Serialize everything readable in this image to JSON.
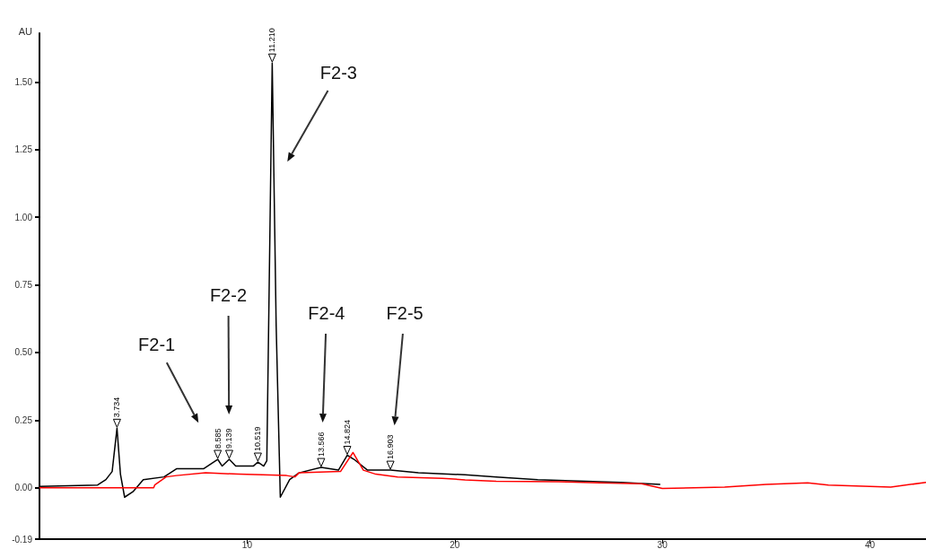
{
  "chart_data": {
    "type": "line",
    "ylabel": "AU",
    "xlim": [
      0,
      42.7
    ],
    "xticks": [
      10,
      20,
      30,
      40
    ],
    "ylim": [
      -0.19,
      1.68
    ],
    "yticks": [
      -0.19,
      {
        "value": 0,
        "label": "0.00"
      },
      {
        "value": 0.25,
        "label": "0.25"
      },
      {
        "value": 0.5,
        "label": "0.50"
      },
      {
        "value": 0.75,
        "label": "0.75"
      },
      {
        "value": 1,
        "label": "1.00"
      },
      {
        "value": 1.25,
        "label": "1.25"
      },
      {
        "value": 1.5,
        "label": "1.50"
      }
    ],
    "grid": false,
    "line_style": "solid",
    "marker": "none",
    "series": [
      {
        "color": "#000000",
        "x": [
          0,
          2.8,
          3.2,
          3.5,
          3.734,
          3.9,
          4.1,
          4.5,
          5.0,
          6.0,
          6.6,
          7.9,
          8.585,
          8.8,
          9.139,
          9.45,
          10.3,
          10.519,
          10.8,
          10.95,
          11.21,
          11.4,
          11.6,
          12.05,
          12.5,
          13.566,
          14.4,
          14.824,
          15.15,
          15.8,
          16.903,
          18.25,
          20.5,
          22,
          24,
          26,
          28,
          29.9
        ],
        "values": [
          0.005,
          0.01,
          0.03,
          0.06,
          0.22,
          0.05,
          -0.035,
          -0.015,
          0.03,
          0.04,
          0.07,
          0.07,
          0.105,
          0.08,
          0.105,
          0.08,
          0.08,
          0.095,
          0.08,
          0.1,
          1.57,
          0.6,
          -0.035,
          0.03,
          0.055,
          0.075,
          0.065,
          0.12,
          0.105,
          0.065,
          0.065,
          0.055,
          0.048,
          0.04,
          0.03,
          0.025,
          0.02,
          0.012
        ]
      },
      {
        "color": "#ff0000",
        "x": [
          0,
          5.5,
          5.55,
          6.1,
          6.6,
          8.0,
          9.6,
          11.9,
          12.3,
          12.5,
          14.5,
          15.1,
          15.6,
          16.2,
          17.25,
          19.4,
          20.5,
          22,
          25,
          27,
          29,
          30,
          33,
          35,
          37,
          38,
          41,
          42.7
        ],
        "values": [
          0,
          0,
          0.01,
          0.04,
          0.045,
          0.055,
          0.05,
          0.045,
          0.04,
          0.055,
          0.06,
          0.13,
          0.065,
          0.05,
          0.04,
          0.035,
          0.029,
          0.024,
          0.022,
          0.018,
          0.015,
          -0.003,
          0.002,
          0.012,
          0.018,
          0.01,
          0.002,
          0.02
        ]
      }
    ],
    "annotations": [
      {
        "text": "3.734",
        "x": 3.734,
        "y": 0.22
      },
      {
        "text": "8.585",
        "x": 8.585,
        "y": 0.105
      },
      {
        "text": "9.139",
        "x": 9.139,
        "y": 0.105
      },
      {
        "text": "10.519",
        "x": 10.519,
        "y": 0.095
      },
      {
        "text": "11.210",
        "x": 11.21,
        "y": 1.57
      },
      {
        "text": "13.566",
        "x": 13.566,
        "y": 0.075
      },
      {
        "text": "14.824",
        "x": 14.824,
        "y": 0.12
      },
      {
        "text": "16.903",
        "x": 16.903,
        "y": 0.065
      },
      "F2-1",
      "F2-2",
      "F2-3",
      "F2-4",
      "F2-5"
    ]
  }
}
